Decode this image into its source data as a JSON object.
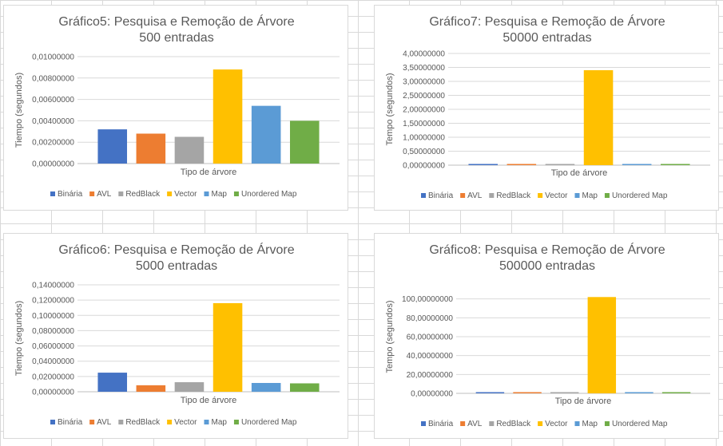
{
  "chart_data": [
    {
      "type": "bar",
      "title": [
        "Gráfico5: Pesquisa e Remoção de  Árvore",
        "500 entradas"
      ],
      "xlabel": "Tipo de árvore",
      "ylabel": "Tiempo (segundos)",
      "ylim": [
        0,
        0.01
      ],
      "yticks": [
        0,
        0.002,
        0.004,
        0.006,
        0.008,
        0.01
      ],
      "ytick_labels": [
        "0,00000000",
        "0,00200000",
        "0,00400000",
        "0,00600000",
        "0,00800000",
        "0,01000000"
      ],
      "grid": true,
      "legend_position": "bottom",
      "series": [
        {
          "name": "Binária",
          "color": "#4472c4",
          "values": [
            0.0032
          ]
        },
        {
          "name": "AVL",
          "color": "#ed7d31",
          "values": [
            0.0028
          ]
        },
        {
          "name": "RedBlack",
          "color": "#a5a5a5",
          "values": [
            0.0025
          ]
        },
        {
          "name": "Vector",
          "color": "#ffc000",
          "values": [
            0.0088
          ]
        },
        {
          "name": "Map",
          "color": "#5b9bd5",
          "values": [
            0.0054
          ]
        },
        {
          "name": "Unordered Map",
          "color": "#70ad47",
          "values": [
            0.004
          ]
        }
      ]
    },
    {
      "type": "bar",
      "title": [
        "Gráfico7: Pesquisa e Remoção de  Árvore",
        "50000 entradas"
      ],
      "xlabel": "Tipo de árvore",
      "ylabel": "Tempo (segundos)",
      "ylim": [
        0,
        4
      ],
      "yticks": [
        0,
        0.5,
        1,
        1.5,
        2,
        2.5,
        3,
        3.5,
        4
      ],
      "ytick_labels": [
        "0,00000000",
        "0,50000000",
        "1,00000000",
        "1,50000000",
        "2,00000000",
        "2,50000000",
        "3,00000000",
        "3,50000000",
        "4,00000000"
      ],
      "grid": true,
      "legend_position": "bottom",
      "series": [
        {
          "name": "Binária",
          "color": "#4472c4",
          "values": [
            0.04
          ]
        },
        {
          "name": "AVL",
          "color": "#ed7d31",
          "values": [
            0.015
          ]
        },
        {
          "name": "RedBlack",
          "color": "#a5a5a5",
          "values": [
            0.015
          ]
        },
        {
          "name": "Vector",
          "color": "#ffc000",
          "values": [
            3.4
          ]
        },
        {
          "name": "Map",
          "color": "#5b9bd5",
          "values": [
            0.02
          ]
        },
        {
          "name": "Unordered Map",
          "color": "#70ad47",
          "values": [
            0.015
          ]
        }
      ]
    },
    {
      "type": "bar",
      "title": [
        "Gráfico6: Pesquisa e Remoção de  Árvore",
        "5000 entradas"
      ],
      "xlabel": "Tipo de árvore",
      "ylabel": "Tiempo (segundos)",
      "ylim": [
        0,
        0.14
      ],
      "yticks": [
        0,
        0.02,
        0.04,
        0.06,
        0.08,
        0.1,
        0.12,
        0.14
      ],
      "ytick_labels": [
        "0,00000000",
        "0,02000000",
        "0,04000000",
        "0,06000000",
        "0,08000000",
        "0,10000000",
        "0,12000000",
        "0,14000000"
      ],
      "grid": true,
      "legend_position": "bottom",
      "series": [
        {
          "name": "Binária",
          "color": "#4472c4",
          "values": [
            0.025
          ]
        },
        {
          "name": "AVL",
          "color": "#ed7d31",
          "values": [
            0.0085
          ]
        },
        {
          "name": "RedBlack",
          "color": "#a5a5a5",
          "values": [
            0.0125
          ]
        },
        {
          "name": "Vector",
          "color": "#ffc000",
          "values": [
            0.116
          ]
        },
        {
          "name": "Map",
          "color": "#5b9bd5",
          "values": [
            0.0115
          ]
        },
        {
          "name": "Unordered Map",
          "color": "#70ad47",
          "values": [
            0.011
          ]
        }
      ]
    },
    {
      "type": "bar",
      "title": [
        "Gráfico8: Pesquisa e Remoção de  Árvore",
        "500000 entradas"
      ],
      "xlabel": "Tipo de árvore",
      "ylabel": "Tempo (segundos)",
      "ylim": [
        0,
        120
      ],
      "yticks": [
        0,
        20,
        40,
        60,
        80,
        100
      ],
      "ytick_labels": [
        "0,00000000",
        "20,00000000",
        "40,00000000",
        "60,00000000",
        "80,00000000",
        "100,00000000"
      ],
      "grid": true,
      "legend_position": "bottom",
      "series": [
        {
          "name": "Binária",
          "color": "#4472c4",
          "values": [
            0.7
          ]
        },
        {
          "name": "AVL",
          "color": "#ed7d31",
          "values": [
            0.5
          ]
        },
        {
          "name": "RedBlack",
          "color": "#a5a5a5",
          "values": [
            0.4
          ]
        },
        {
          "name": "Vector",
          "color": "#ffc000",
          "values": [
            102
          ]
        },
        {
          "name": "Map",
          "color": "#5b9bd5",
          "values": [
            0.6
          ]
        },
        {
          "name": "Unordered Map",
          "color": "#70ad47",
          "values": [
            0.5
          ]
        }
      ]
    }
  ]
}
